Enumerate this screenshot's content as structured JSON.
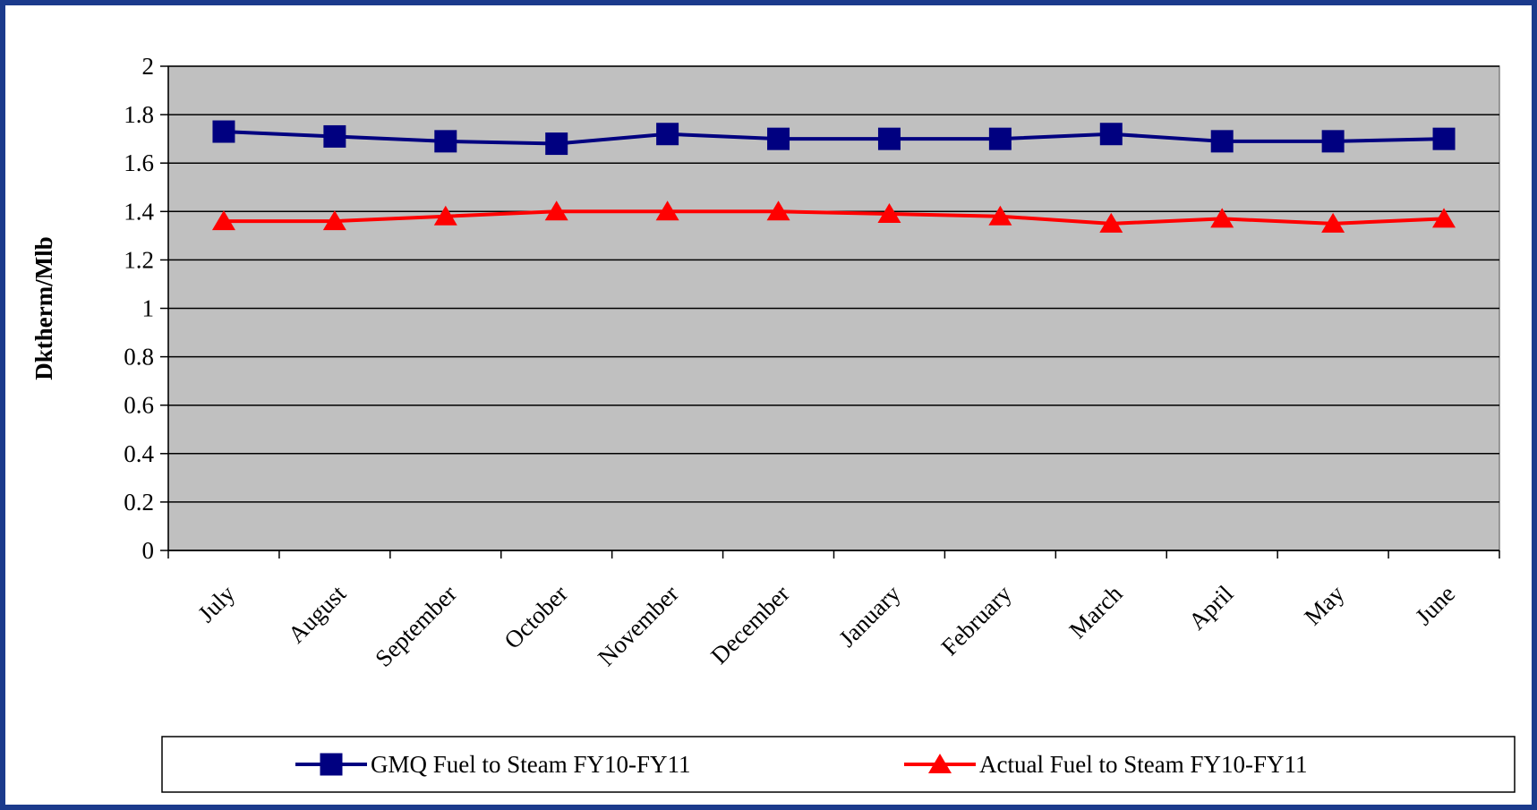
{
  "chart_data": {
    "type": "line",
    "y_label": "Dktherm/Mlb",
    "categories": [
      "July",
      "August",
      "September",
      "October",
      "November",
      "December",
      "January",
      "February",
      "March",
      "April",
      "May",
      "June"
    ],
    "series": [
      {
        "name": "GMQ Fuel to Steam FY10-FY11",
        "color": "#000080",
        "marker": "square",
        "values": [
          1.73,
          1.71,
          1.69,
          1.68,
          1.72,
          1.7,
          1.7,
          1.7,
          1.72,
          1.69,
          1.69,
          1.7
        ]
      },
      {
        "name": "Actual Fuel to Steam FY10-FY11",
        "color": "#ff0000",
        "marker": "triangle",
        "values": [
          1.36,
          1.36,
          1.38,
          1.4,
          1.4,
          1.4,
          1.39,
          1.38,
          1.35,
          1.37,
          1.35,
          1.37
        ]
      }
    ],
    "ylim": [
      0,
      2
    ],
    "yticks": [
      0,
      0.2,
      0.4,
      0.6,
      0.8,
      1,
      1.2,
      1.4,
      1.6,
      1.8,
      2
    ],
    "grid": true,
    "plot_background": "#c0c0c0",
    "legend": "bottom"
  }
}
